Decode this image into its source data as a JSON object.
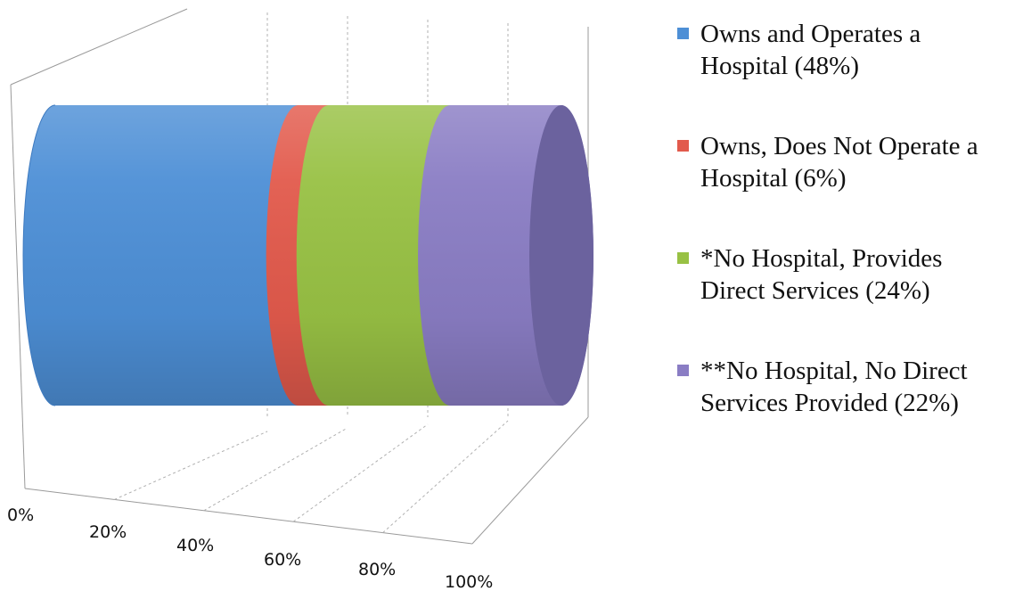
{
  "chart_data": {
    "type": "bar",
    "orientation": "horizontal",
    "stacked": true,
    "shape": "3d-cylinder",
    "title": "",
    "xlabel": "",
    "ylabel": "",
    "xlim": [
      0,
      100
    ],
    "x_ticks": [
      "0%",
      "20%",
      "40%",
      "60%",
      "80%",
      "100%"
    ],
    "grid": true,
    "legend_position": "right",
    "series": [
      {
        "name": "Owns and Operates a Hospital (48%)",
        "value": 48,
        "color": "#4d8fd6"
      },
      {
        "name": "Owns, Does Not Operate a Hospital (6%)",
        "value": 6,
        "color": "#e25a4c"
      },
      {
        "name": "*No Hospital, Provides Direct Services (24%)",
        "value": 24,
        "color": "#98c144"
      },
      {
        "name": "**No Hospital, No Direct Services Provided (22%)",
        "value": 22,
        "color": "#8a7dc4"
      }
    ]
  }
}
